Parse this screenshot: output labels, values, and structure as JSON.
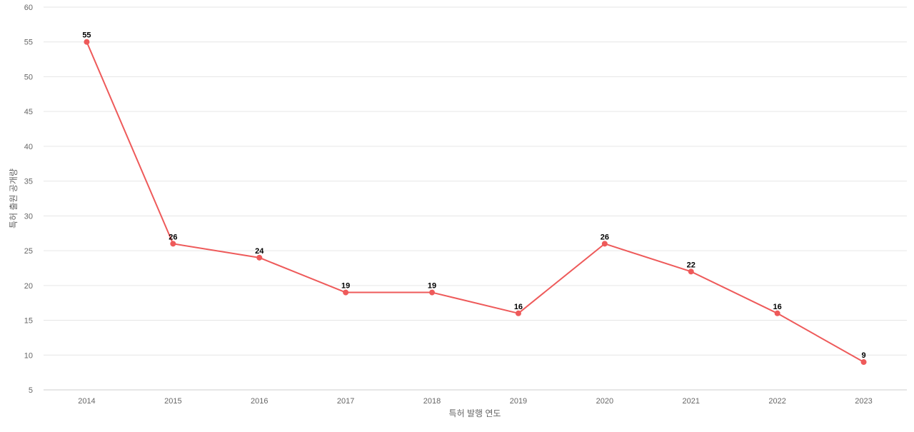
{
  "chart_data": {
    "type": "line",
    "title": "",
    "xlabel": "특허 발행 연도",
    "ylabel": "특허 출원 공개량",
    "categories": [
      "2014",
      "2015",
      "2016",
      "2017",
      "2018",
      "2019",
      "2020",
      "2021",
      "2022",
      "2023"
    ],
    "series": [
      {
        "values": [
          55,
          26,
          24,
          19,
          19,
          16,
          26,
          22,
          16,
          9
        ],
        "color": "#ee5a5a"
      }
    ],
    "ylim": [
      5,
      60
    ],
    "yticks": [
      5,
      10,
      15,
      20,
      25,
      30,
      35,
      40,
      45,
      50,
      55,
      60
    ],
    "grid": true,
    "legend": "none",
    "data_labels": true
  }
}
